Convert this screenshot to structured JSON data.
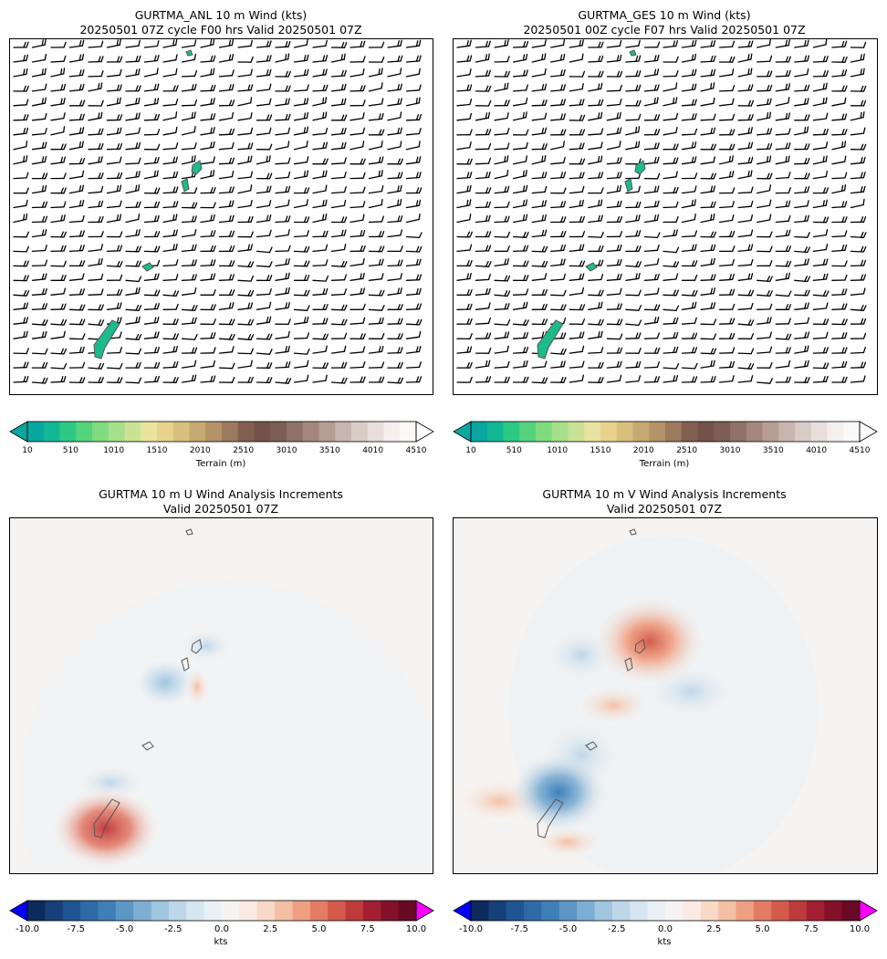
{
  "panels": {
    "anl": {
      "title_line1": "GURTMA_ANL 10 m Wind (kts)",
      "title_line2": "20250501 07Z cycle F00 hrs Valid 20250501 07Z"
    },
    "ges": {
      "title_line1": "GURTMA_GES 10 m Wind (kts)",
      "title_line2": "20250501 00Z cycle F07 hrs Valid 20250501 07Z"
    },
    "u_inc": {
      "title_line1": "GURTMA 10 m U Wind Analysis Increments",
      "title_line2": "Valid 20250501 07Z"
    },
    "v_inc": {
      "title_line1": "GURTMA 10 m V Wind Analysis Increments",
      "title_line2": "Valid 20250501 07Z"
    }
  },
  "terrain_colorbar": {
    "label": "Terrain (m)",
    "ticks": [
      "10",
      "510",
      "1010",
      "1510",
      "2010",
      "2510",
      "3010",
      "3510",
      "4010",
      "4510"
    ],
    "colors": [
      "#0aa6a0",
      "#12b894",
      "#2ec886",
      "#55d37c",
      "#7fdb80",
      "#a6e08a",
      "#cbe296",
      "#e8e3a0",
      "#e7d38e",
      "#d8c07e",
      "#c6aa72",
      "#b39367",
      "#9b7a5d",
      "#835f52",
      "#74524a",
      "#7d5e56",
      "#8f7169",
      "#a3877f",
      "#b69e97",
      "#c8b5af",
      "#d9cbc6",
      "#e8dfdc",
      "#f4eeec",
      "#fbf9f8"
    ]
  },
  "increment_colorbar": {
    "label": "kts",
    "ticks": [
      "-10.0",
      "-7.5",
      "-5.0",
      "-2.5",
      "0.0",
      "2.5",
      "5.0",
      "7.5",
      "10.0"
    ],
    "under_color": "#0000ff",
    "over_color": "#ff00ff",
    "colors": [
      "#0d2a5c",
      "#173f7a",
      "#1f5593",
      "#2f6aa8",
      "#3e7fb8",
      "#5c97c6",
      "#7eaed3",
      "#9fc5df",
      "#bdd7e9",
      "#d6e6f1",
      "#e9f1f6",
      "#f6f4f2",
      "#f9ebe3",
      "#f8d9c7",
      "#f4c0a5",
      "#ef9f82",
      "#e47c64",
      "#d45a4c",
      "#bd3b3b",
      "#a21f32",
      "#85102a",
      "#680a24"
    ]
  }
}
